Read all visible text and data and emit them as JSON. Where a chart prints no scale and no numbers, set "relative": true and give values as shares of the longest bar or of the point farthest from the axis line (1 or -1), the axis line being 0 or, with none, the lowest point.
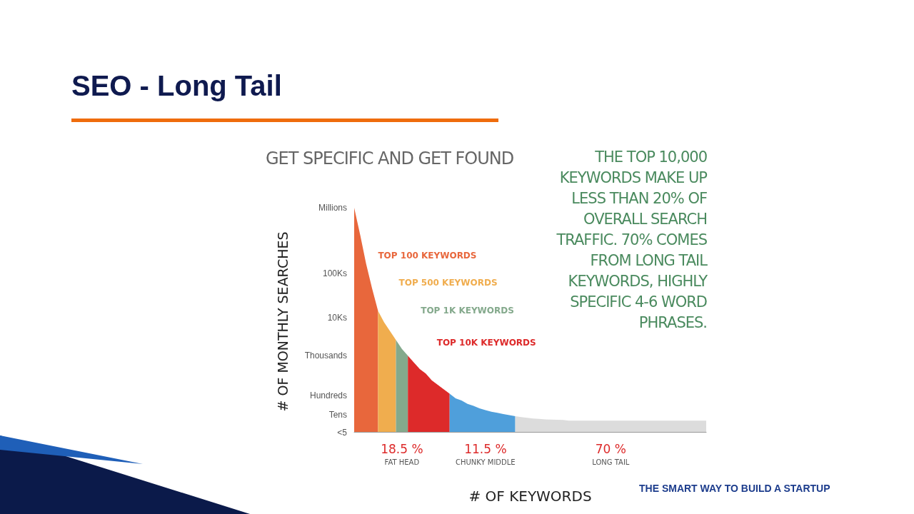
{
  "chart_data": {
    "type": "area",
    "title": "SEO - Long Tail",
    "subtitle": "GET SPECIFIC AND GET FOUND",
    "xlabel": "# OF KEYWORDS",
    "ylabel": "# OF MONTHLY SEARCHES",
    "categories": [
      null,
      null,
      null,
      null,
      null,
      null,
      null,
      null,
      null,
      null,
      null,
      null,
      null,
      null,
      null,
      null,
      null,
      null,
      null,
      null,
      null,
      null,
      null,
      null,
      null,
      null,
      null,
      null,
      null,
      null,
      null,
      null,
      null,
      null,
      null,
      null,
      null,
      null,
      null,
      null,
      null,
      null,
      null,
      null,
      null,
      null,
      null,
      null,
      null,
      null,
      null,
      null,
      null,
      null,
      null,
      null,
      null,
      null,
      null,
      null
    ],
    "relative": true,
    "grid": false,
    "legend": false,
    "marker": "none",
    "series": [
      {
        "name": "TOP 100 KEYWORDS",
        "color": "#e8673c",
        "values": [
          1.0,
          0.88,
          0.75,
          0.64,
          0.54,
          null,
          null,
          null,
          null,
          null,
          null,
          null,
          null,
          null,
          null,
          null,
          null,
          null,
          null,
          null,
          null,
          null,
          null,
          null,
          null,
          null,
          null,
          null,
          null,
          null,
          null,
          null,
          null,
          null,
          null,
          null,
          null,
          null,
          null,
          null,
          null,
          null,
          null,
          null,
          null,
          null,
          null,
          null,
          null,
          null,
          null,
          null,
          null,
          null,
          null,
          null,
          null,
          null,
          null,
          null
        ]
      },
      {
        "name": "TOP 500 KEYWORDS",
        "color": "#f0ad4e",
        "values": [
          null,
          null,
          null,
          null,
          0.54,
          0.49,
          0.45,
          0.41,
          null,
          null,
          null,
          null,
          null,
          null,
          null,
          null,
          null,
          null,
          null,
          null,
          null,
          null,
          null,
          null,
          null,
          null,
          null,
          null,
          null,
          null,
          null,
          null,
          null,
          null,
          null,
          null,
          null,
          null,
          null,
          null,
          null,
          null,
          null,
          null,
          null,
          null,
          null,
          null,
          null,
          null,
          null,
          null,
          null,
          null,
          null,
          null,
          null,
          null,
          null,
          null
        ]
      },
      {
        "name": "TOP 1K KEYWORDS",
        "color": "#84a98c",
        "values": [
          null,
          null,
          null,
          null,
          null,
          null,
          null,
          0.41,
          0.37,
          0.34,
          null,
          null,
          null,
          null,
          null,
          null,
          null,
          null,
          null,
          null,
          null,
          null,
          null,
          null,
          null,
          null,
          null,
          null,
          null,
          null,
          null,
          null,
          null,
          null,
          null,
          null,
          null,
          null,
          null,
          null,
          null,
          null,
          null,
          null,
          null,
          null,
          null,
          null,
          null,
          null,
          null,
          null,
          null,
          null,
          null,
          null,
          null,
          null,
          null,
          null
        ]
      },
      {
        "name": "TOP 10K KEYWORDS",
        "color": "#dd2a2a",
        "values": [
          null,
          null,
          null,
          null,
          null,
          null,
          null,
          null,
          null,
          0.34,
          0.31,
          0.28,
          0.26,
          0.23,
          0.21,
          0.19,
          0.17,
          null,
          null,
          null,
          null,
          null,
          null,
          null,
          null,
          null,
          null,
          null,
          null,
          null,
          null,
          null,
          null,
          null,
          null,
          null,
          null,
          null,
          null,
          null,
          null,
          null,
          null,
          null,
          null,
          null,
          null,
          null,
          null,
          null,
          null,
          null,
          null,
          null,
          null,
          null,
          null,
          null,
          null,
          null
        ]
      },
      {
        "color": "#4f9fdb",
        "values": [
          null,
          null,
          null,
          null,
          null,
          null,
          null,
          null,
          null,
          null,
          null,
          null,
          null,
          null,
          null,
          null,
          0.17,
          0.15,
          0.14,
          0.125,
          0.116,
          0.105,
          0.097,
          0.09,
          0.085,
          0.08,
          0.075,
          0.07,
          null,
          null,
          null,
          null,
          null,
          null,
          null,
          null,
          null,
          null,
          null,
          null,
          null,
          null,
          null,
          null,
          null,
          null,
          null,
          null,
          null,
          null,
          null,
          null,
          null,
          null,
          null,
          null,
          null,
          null,
          null,
          null
        ]
      },
      {
        "color": "#dcdcdc",
        "values": [
          null,
          null,
          null,
          null,
          null,
          null,
          null,
          null,
          null,
          null,
          null,
          null,
          null,
          null,
          null,
          null,
          null,
          null,
          null,
          null,
          null,
          null,
          null,
          null,
          null,
          null,
          null,
          0.07,
          0.066,
          0.063,
          0.06,
          0.058,
          0.056,
          0.055,
          0.054,
          0.053,
          0.05,
          0.05,
          0.05,
          0.05,
          0.05,
          0.05,
          0.05,
          0.05,
          0.05,
          0.05,
          0.05,
          0.05,
          0.05,
          0.05,
          0.05,
          0.05,
          0.05,
          0.05,
          0.05,
          0.05,
          0.05,
          0.05,
          0.05,
          0.05
        ]
      }
    ],
    "annotations": [
      "THE TOP 10,000 KEYWORDS MAKE UP LESS THAN 20% OF OVERALL SEARCH TRAFFIC. 70% COMES FROM LONG TAIL KEYWORDS, HIGHLY SPECIFIC 4-6 WORD PHRASES.",
      "18.5 %",
      "FAT HEAD",
      "11.5 %",
      "CHUNKY MIDDLE",
      "70 %",
      "LONG TAIL",
      "THE SMART WAY TO BUILD A STARTUP",
      "Millions",
      "100Ks",
      "10Ks",
      "Thousands",
      "Hundreds",
      "Tens",
      "<5"
    ]
  }
}
